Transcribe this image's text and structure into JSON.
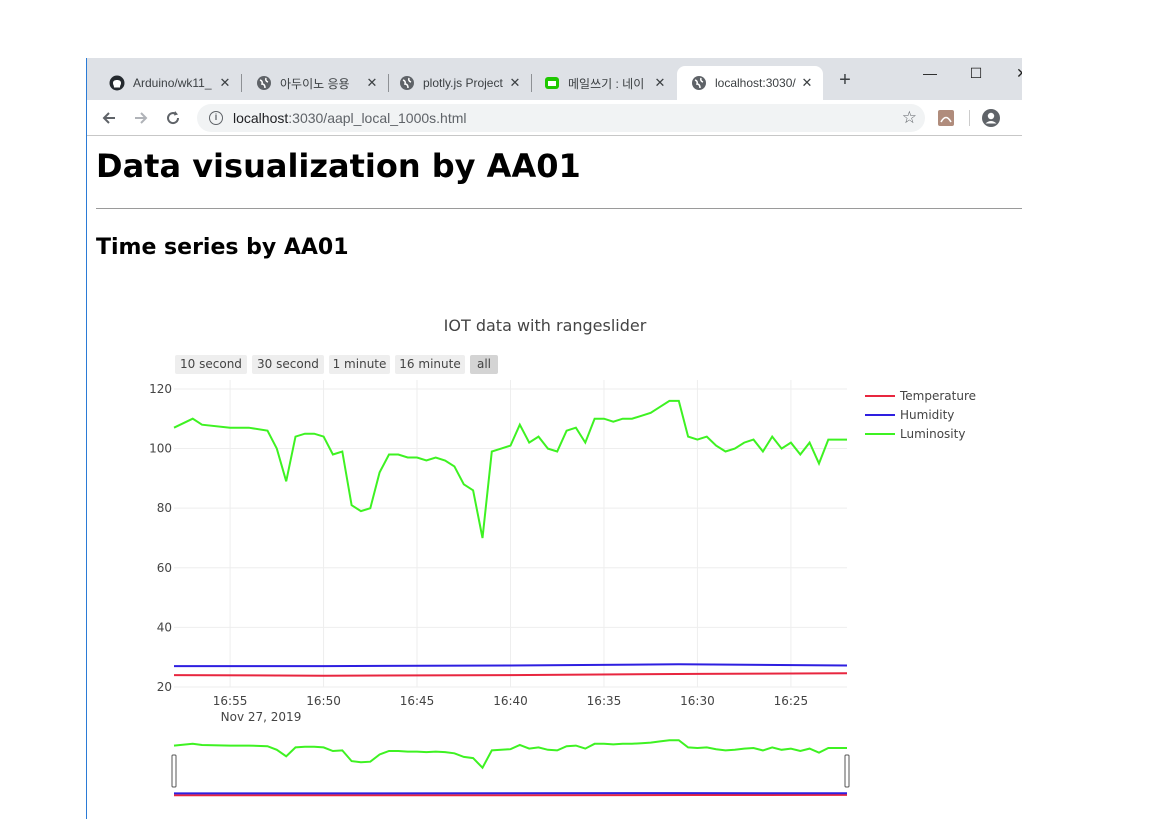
{
  "browser": {
    "tabs": [
      {
        "title": "Arduino/wk11_",
        "icon": "github-icon",
        "active": false
      },
      {
        "title": "아두이노 응용",
        "icon": "globe-icon",
        "active": false
      },
      {
        "title": "plotly.js Project",
        "icon": "globe-icon",
        "active": false
      },
      {
        "title": "메일쓰기 : 네이",
        "icon": "naver-mail-icon",
        "active": false
      },
      {
        "title": "localhost:3030/",
        "icon": "globe-icon",
        "active": true
      }
    ],
    "new_tab_label": "+",
    "url_host": "localhost",
    "url_rest": ":3030/aapl_local_1000s.html"
  },
  "page": {
    "title": "Data visualization by AA01",
    "subtitle": "Time series by AA01"
  },
  "chart_data": {
    "type": "line",
    "title": "IOT data with rangeslider",
    "range_buttons": [
      "10 second",
      "30 second",
      "1 minute",
      "16 minute",
      "all"
    ],
    "active_button": "all",
    "y_ticks": [
      120,
      100,
      80,
      60,
      40,
      20
    ],
    "ylim": [
      20,
      123
    ],
    "x_ticks": [
      "16:55",
      "16:50",
      "16:45",
      "16:40",
      "16:35",
      "16:30",
      "16:25"
    ],
    "x_date_label": "Nov 27, 2019",
    "xlim": [
      "16:58",
      "16:22"
    ],
    "x_reversed": true,
    "legend_position": "top-right",
    "series": [
      {
        "name": "Temperature",
        "color": "#e8263f",
        "x": [
          "16:58",
          "16:50",
          "16:40",
          "16:30",
          "16:22"
        ],
        "values": [
          24,
          23.8,
          24,
          24.4,
          24.6
        ]
      },
      {
        "name": "Humidity",
        "color": "#2e1fe0",
        "x": [
          "16:58",
          "16:50",
          "16:40",
          "16:31",
          "16:22"
        ],
        "values": [
          27,
          27,
          27.2,
          27.6,
          27.2
        ]
      },
      {
        "name": "Luminosity",
        "color": "#3ef222",
        "x": [
          "16:58",
          "16:57",
          "16:56.5",
          "16:55",
          "16:54",
          "16:53",
          "16:52.5",
          "16:52",
          "16:51.5",
          "16:51",
          "16:50.5",
          "16:50",
          "16:49.5",
          "16:49",
          "16:48.5",
          "16:48",
          "16:47.5",
          "16:47",
          "16:46.5",
          "16:46",
          "16:45.5",
          "16:45",
          "16:44.5",
          "16:44",
          "16:43.5",
          "16:43",
          "16:42.5",
          "16:42",
          "16:41.5",
          "16:41",
          "16:40.5",
          "16:40",
          "16:39.5",
          "16:39",
          "16:38.5",
          "16:38",
          "16:37.5",
          "16:37",
          "16:36.5",
          "16:36",
          "16:35.5",
          "16:35",
          "16:34.5",
          "16:34",
          "16:33.5",
          "16:33",
          "16:32.5",
          "16:32",
          "16:31.5",
          "16:31",
          "16:30.5",
          "16:30",
          "16:29.5",
          "16:29",
          "16:28.5",
          "16:28",
          "16:27.5",
          "16:27",
          "16:26.5",
          "16:26",
          "16:25.5",
          "16:25",
          "16:24.5",
          "16:24",
          "16:23.5",
          "16:23",
          "16:22.5",
          "16:22"
        ],
        "values": [
          107,
          110,
          108,
          107,
          107,
          106,
          100,
          89,
          104,
          105,
          105,
          104,
          98,
          99,
          81,
          79,
          80,
          92,
          98,
          98,
          97,
          97,
          96,
          97,
          96,
          94,
          88,
          86,
          70,
          99,
          100,
          101,
          108,
          102,
          104,
          100,
          99,
          106,
          107,
          102,
          110,
          110,
          109,
          110,
          110,
          111,
          112,
          114,
          116,
          116,
          104,
          103,
          104,
          101,
          99,
          100,
          102,
          103,
          99,
          104,
          100,
          102,
          98,
          102,
          95,
          103,
          103,
          103
        ]
      }
    ]
  }
}
